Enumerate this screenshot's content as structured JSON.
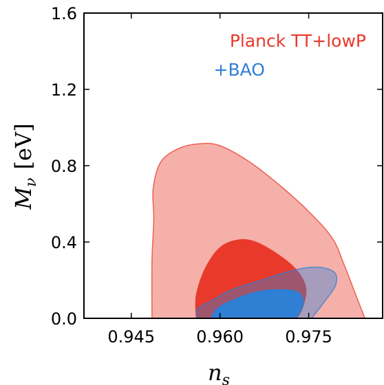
{
  "chart_data": {
    "type": "area",
    "xlabel": "n_s",
    "xlabel_main": "n",
    "xlabel_sub": "s",
    "ylabel": "M_ν [eV]",
    "ylabel_main": "M",
    "ylabel_sub": "ν",
    "ylabel_unit": "[eV]",
    "xlim": [
      0.937,
      0.9875
    ],
    "ylim": [
      0.0,
      1.6
    ],
    "xticks": [
      0.945,
      0.96,
      0.975
    ],
    "xtick_labels": [
      "0.945",
      "0.960",
      "0.975"
    ],
    "yticks": [
      0.0,
      0.4,
      0.8,
      1.2,
      1.6
    ],
    "ytick_labels": [
      "0.0",
      "0.4",
      "0.8",
      "1.2",
      "1.6"
    ],
    "grid": false,
    "legend_position": "top-right",
    "series": [
      {
        "name": "Planck TT+lowP",
        "color": "#e8392a",
        "contour_95": [
          [
            0.9485,
            0.0
          ],
          [
            0.9485,
            0.3
          ],
          [
            0.9488,
            0.52
          ],
          [
            0.9487,
            0.68
          ],
          [
            0.95,
            0.82
          ],
          [
            0.953,
            0.89
          ],
          [
            0.9565,
            0.915
          ],
          [
            0.96,
            0.905
          ],
          [
            0.965,
            0.82
          ],
          [
            0.97,
            0.7
          ],
          [
            0.975,
            0.56
          ],
          [
            0.979,
            0.42
          ],
          [
            0.981,
            0.28
          ],
          [
            0.983,
            0.12
          ],
          [
            0.9845,
            0.0
          ]
        ],
        "contour_68": [
          [
            0.956,
            0.0
          ],
          [
            0.956,
            0.12
          ],
          [
            0.9575,
            0.26
          ],
          [
            0.96,
            0.37
          ],
          [
            0.963,
            0.41
          ],
          [
            0.966,
            0.4
          ],
          [
            0.97,
            0.33
          ],
          [
            0.973,
            0.25
          ],
          [
            0.9745,
            0.16
          ],
          [
            0.974,
            0.06
          ],
          [
            0.973,
            0.0
          ]
        ]
      },
      {
        "name": "+BAO",
        "color": "#2f7fd4",
        "contour_95": [
          [
            0.9562,
            0.0
          ],
          [
            0.9562,
            0.05
          ],
          [
            0.959,
            0.1
          ],
          [
            0.962,
            0.15
          ],
          [
            0.967,
            0.2
          ],
          [
            0.971,
            0.24
          ],
          [
            0.9745,
            0.265
          ],
          [
            0.9775,
            0.265
          ],
          [
            0.9795,
            0.235
          ],
          [
            0.9795,
            0.17
          ],
          [
            0.9775,
            0.08
          ],
          [
            0.9755,
            0.0
          ]
        ],
        "contour_68": [
          [
            0.9585,
            0.0
          ],
          [
            0.9595,
            0.05
          ],
          [
            0.9625,
            0.1
          ],
          [
            0.9665,
            0.14
          ],
          [
            0.97,
            0.15
          ],
          [
            0.973,
            0.14
          ],
          [
            0.974,
            0.1
          ],
          [
            0.9738,
            0.05
          ],
          [
            0.9728,
            0.0
          ]
        ]
      }
    ]
  }
}
